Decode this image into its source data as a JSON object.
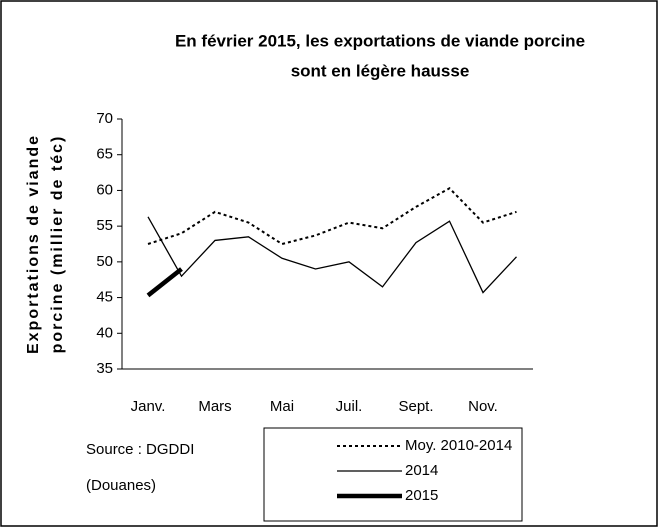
{
  "chart_data": {
    "type": "line",
    "title": [
      "En février 2015,  les exportations de viande porcine",
      "sont en légère hausse"
    ],
    "y_label": [
      "Exportations de viande",
      "porcine (millier de téc)"
    ],
    "source": [
      "Source : DGDDI",
      "(Douanes)"
    ],
    "categories": [
      "Janv.",
      null,
      "Mars",
      null,
      "Mai",
      null,
      "Juil.",
      null,
      "Sept.",
      null,
      "Nov.",
      null
    ],
    "series": [
      {
        "name": "Moy. 2010-2014",
        "color": "#000000",
        "linestyle": "dotted",
        "linewidth": 2,
        "values": [
          52.5,
          54,
          57,
          55.5,
          52.5,
          53.7,
          55.5,
          54.7,
          57.7,
          60.3,
          55.5,
          57
        ]
      },
      {
        "name": "2014",
        "color": "#000000",
        "linestyle": "solid",
        "linewidth": 1.3,
        "values": [
          56.3,
          48,
          53,
          53.5,
          50.5,
          49,
          50,
          46.5,
          52.7,
          55.7,
          45.7,
          50.7
        ]
      },
      {
        "name": "2015",
        "color": "#000000",
        "linestyle": "solid",
        "linewidth": 4.5,
        "values": [
          45.3,
          49,
          null,
          null,
          null,
          null,
          null,
          null,
          null,
          null,
          null,
          null
        ]
      }
    ],
    "ylim": [
      35,
      70
    ],
    "yticks": [
      35,
      40,
      45,
      50,
      55,
      60,
      65,
      70
    ],
    "grid": false
  }
}
